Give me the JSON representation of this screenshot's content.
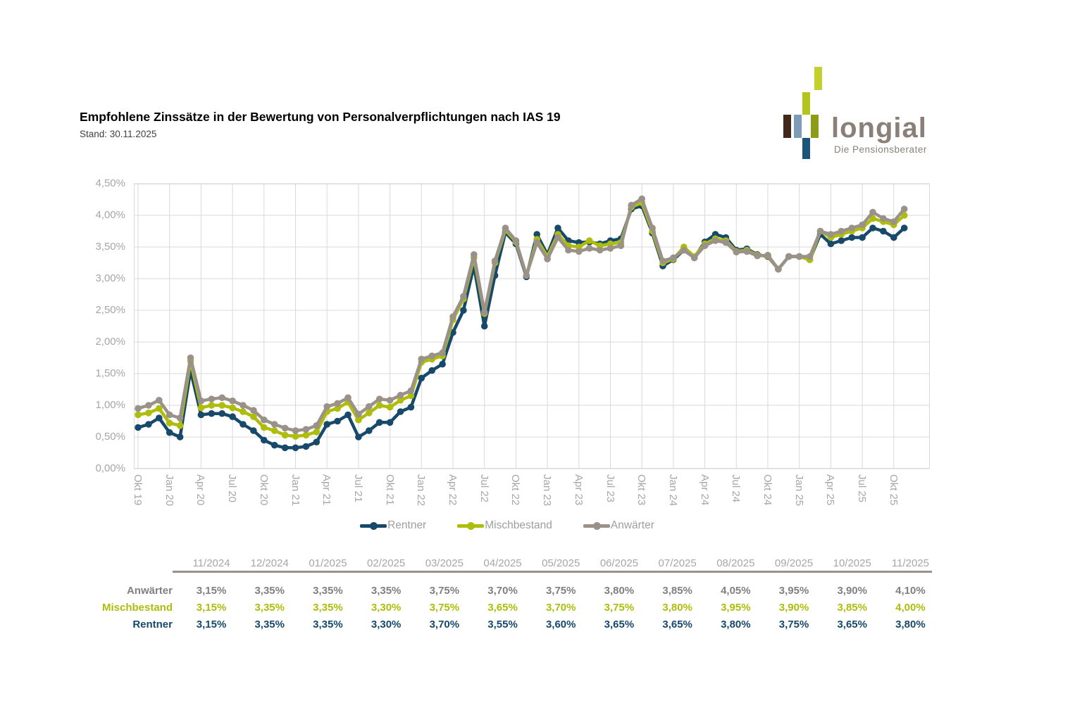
{
  "header": {
    "title": "Empfohlene Zinssätze in der Bewertung von Personalverpflichtungen nach IAS 19",
    "stand": "Stand: 30.11.2025"
  },
  "logo": {
    "name": "longial",
    "tagline": "Die Pensionsberater",
    "bar_colors": {
      "chartreuse_top": "#c3cf2a",
      "chartreuse_mid": "#b4c41e",
      "brown": "#40281a",
      "steel_blue": "#7e9cb6",
      "olive": "#8e9c15",
      "navy": "#1c5578"
    }
  },
  "chart_data": {
    "type": "line",
    "title": "",
    "xlabel": "",
    "ylabel": "",
    "ylim": [
      0,
      4.5
    ],
    "y_tick_step": 0.5,
    "y_ticks": [
      "0,00%",
      "0,50%",
      "1,00%",
      "1,50%",
      "2,00%",
      "2,50%",
      "3,00%",
      "3,50%",
      "4,00%",
      "4,50%"
    ],
    "x_tick_labels": [
      "Okt 19",
      "Jan 20",
      "Apr 20",
      "Jul 20",
      "Okt 20",
      "Jan 21",
      "Apr 21",
      "Jul 21",
      "Okt 21",
      "Jan 22",
      "Apr 22",
      "Jul 22",
      "Okt 22",
      "Jan 23",
      "Apr 23",
      "Jul 23",
      "Okt 23",
      "Jan 24",
      "Apr 24",
      "Jul 24",
      "Okt 24",
      "Jan 25",
      "Apr 25",
      "Jul 25",
      "Okt 25"
    ],
    "tick_interval_months": 3,
    "grid": true,
    "grid_color": "#d9d9d9",
    "axis_text_color": "#a6a6a6",
    "legend_position": "bottom",
    "series": [
      {
        "name": "Rentner",
        "color": "#17496b",
        "values": [
          0.65,
          0.7,
          0.8,
          0.57,
          0.5,
          1.55,
          0.85,
          0.87,
          0.87,
          0.82,
          0.7,
          0.6,
          0.45,
          0.37,
          0.33,
          0.33,
          0.35,
          0.42,
          0.7,
          0.75,
          0.85,
          0.5,
          0.6,
          0.73,
          0.73,
          0.9,
          0.97,
          1.43,
          1.55,
          1.65,
          2.15,
          2.5,
          3.2,
          2.25,
          3.05,
          3.73,
          3.55,
          3.03,
          3.7,
          3.38,
          3.8,
          3.6,
          3.57,
          3.58,
          3.55,
          3.6,
          3.63,
          4.1,
          4.15,
          3.72,
          3.2,
          3.3,
          3.45,
          3.33,
          3.58,
          3.7,
          3.65,
          3.45,
          3.47,
          3.38,
          3.35,
          3.15,
          3.35,
          3.35,
          3.3,
          3.7,
          3.55,
          3.6,
          3.65,
          3.65,
          3.8,
          3.75,
          3.65,
          3.8
        ]
      },
      {
        "name": "Mischbestand",
        "color": "#aebd0c",
        "values": [
          0.85,
          0.88,
          0.95,
          0.72,
          0.68,
          1.7,
          0.96,
          1.0,
          1.0,
          0.96,
          0.9,
          0.82,
          0.65,
          0.6,
          0.53,
          0.51,
          0.53,
          0.58,
          0.9,
          0.95,
          1.05,
          0.77,
          0.88,
          1.0,
          0.97,
          1.08,
          1.15,
          1.68,
          1.73,
          1.78,
          2.35,
          2.68,
          3.33,
          2.45,
          3.25,
          3.77,
          3.58,
          3.05,
          3.62,
          3.35,
          3.7,
          3.52,
          3.5,
          3.6,
          3.52,
          3.55,
          3.57,
          4.13,
          4.2,
          3.75,
          3.25,
          3.31,
          3.5,
          3.35,
          3.55,
          3.63,
          3.6,
          3.43,
          3.45,
          3.37,
          3.36,
          3.15,
          3.35,
          3.35,
          3.3,
          3.75,
          3.65,
          3.7,
          3.75,
          3.8,
          3.95,
          3.9,
          3.85,
          4.0
        ]
      },
      {
        "name": "Anwärter",
        "color": "#9a9189",
        "values": [
          0.95,
          1.0,
          1.08,
          0.85,
          0.8,
          1.75,
          1.07,
          1.1,
          1.12,
          1.07,
          1.0,
          0.92,
          0.77,
          0.7,
          0.64,
          0.6,
          0.62,
          0.68,
          0.98,
          1.03,
          1.12,
          0.86,
          0.98,
          1.1,
          1.08,
          1.16,
          1.23,
          1.73,
          1.78,
          1.83,
          2.4,
          2.72,
          3.38,
          2.47,
          3.28,
          3.8,
          3.6,
          3.05,
          3.57,
          3.31,
          3.65,
          3.45,
          3.43,
          3.48,
          3.45,
          3.48,
          3.52,
          4.16,
          4.26,
          3.8,
          3.28,
          3.33,
          3.45,
          3.33,
          3.52,
          3.6,
          3.57,
          3.42,
          3.43,
          3.36,
          3.37,
          3.15,
          3.35,
          3.35,
          3.35,
          3.75,
          3.7,
          3.75,
          3.8,
          3.85,
          4.05,
          3.95,
          3.9,
          4.1
        ]
      }
    ]
  },
  "table": {
    "columns": [
      "11/2024",
      "12/2024",
      "01/2025",
      "02/2025",
      "03/2025",
      "04/2025",
      "05/2025",
      "06/2025",
      "07/2025",
      "08/2025",
      "09/2025",
      "10/2025",
      "11/2025"
    ],
    "rows": [
      {
        "key": "anwaerter",
        "label": "Anwärter",
        "color": "#808080",
        "values": [
          "3,15%",
          "3,35%",
          "3,35%",
          "3,35%",
          "3,75%",
          "3,70%",
          "3,75%",
          "3,80%",
          "3,85%",
          "4,05%",
          "3,95%",
          "3,90%",
          "4,10%"
        ]
      },
      {
        "key": "mischbestand",
        "label": "Mischbestand",
        "color": "#aebd0c",
        "values": [
          "3,15%",
          "3,35%",
          "3,35%",
          "3,30%",
          "3,75%",
          "3,65%",
          "3,70%",
          "3,75%",
          "3,80%",
          "3,95%",
          "3,90%",
          "3,85%",
          "4,00%"
        ]
      },
      {
        "key": "rentner",
        "label": "Rentner",
        "color": "#17496b",
        "values": [
          "3,15%",
          "3,35%",
          "3,35%",
          "3,30%",
          "3,70%",
          "3,55%",
          "3,60%",
          "3,65%",
          "3,65%",
          "3,80%",
          "3,75%",
          "3,65%",
          "3,80%"
        ]
      }
    ]
  }
}
